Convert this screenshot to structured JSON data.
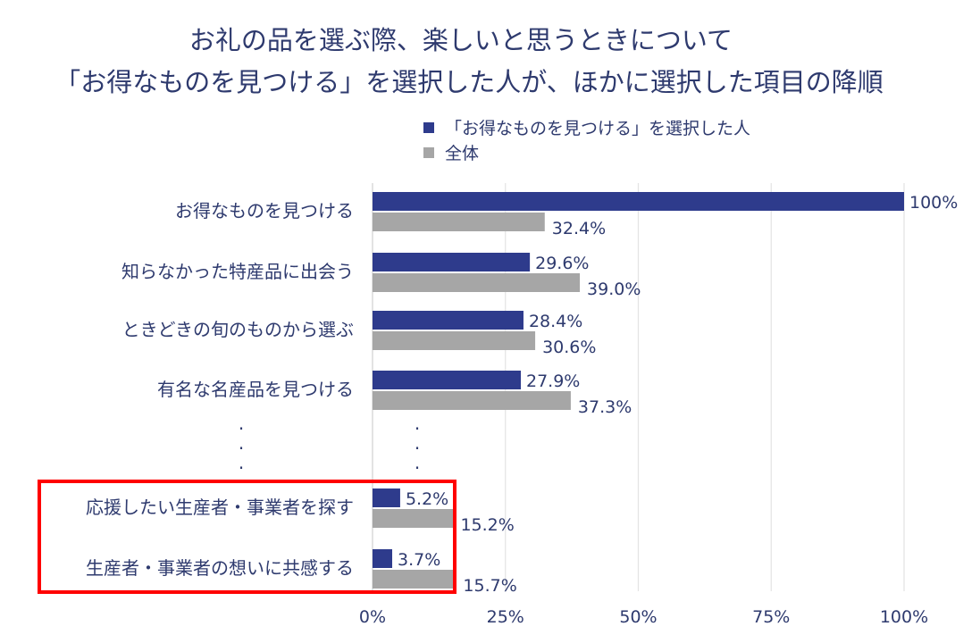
{
  "chart_data": {
    "type": "bar",
    "orientation": "horizontal",
    "title": [
      "お礼の品を選ぶ際、楽しいと思うときについて",
      "「お得なものを見つける」を選択した人が、ほかに選択した項目の降順"
    ],
    "categories": [
      "お得なものを見つける",
      "知らなかった特産品に出会う",
      "ときどきの旬のものから選ぶ",
      "有名な名産品を見つける",
      "応援したい生産者・事業者を探す",
      "生産者・事業者の想いに共感する"
    ],
    "series": [
      {
        "name": "「お得なものを見つける」を選択した人",
        "color": "#2e3b8c",
        "values": [
          100,
          29.6,
          28.4,
          27.9,
          5.2,
          3.7
        ],
        "labels": [
          "100%",
          "29.6%",
          "28.4%",
          "27.9%",
          "5.2%",
          "3.7%"
        ]
      },
      {
        "name": "全体",
        "color": "#a6a6a6",
        "values": [
          32.4,
          39.0,
          30.6,
          37.3,
          15.2,
          15.7
        ],
        "labels": [
          "32.4%",
          "39.0%",
          "30.6%",
          "37.3%",
          "15.2%",
          "15.7%"
        ]
      }
    ],
    "xlim": [
      0,
      100
    ],
    "xticks": [
      "0%",
      "25%",
      "50%",
      "75%",
      "100%"
    ],
    "ellipsis": [
      "·",
      "·",
      "·"
    ],
    "grid": "vertical",
    "legend_position": "top",
    "highlight": {
      "categories": [
        4,
        5
      ],
      "color": "#ff0000"
    }
  }
}
